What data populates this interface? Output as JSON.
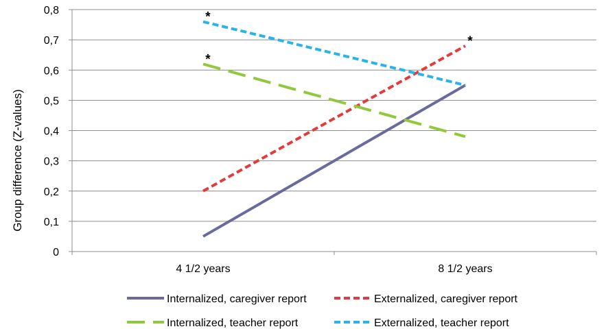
{
  "chart_data": {
    "type": "line",
    "title": "",
    "xlabel": "",
    "ylabel": "Group difference (Z-values)",
    "categories": [
      "4 1/2 years",
      "8 1/2 years"
    ],
    "ylim": [
      0,
      0.8
    ],
    "yticks": [
      0,
      0.1,
      0.2,
      0.3,
      0.4,
      0.5,
      0.6,
      0.7,
      0.8
    ],
    "ytick_labels": [
      "0",
      "0,1",
      "0,2",
      "0,3",
      "0,4",
      "0,5",
      "0,6",
      "0,7",
      "0,8"
    ],
    "grid": true,
    "legend_position": "bottom",
    "series": [
      {
        "name": "Internalized, caregiver report",
        "values": [
          0.05,
          0.55
        ],
        "color": "#6a6a9c",
        "dash": "solid",
        "markers": [
          "",
          ""
        ]
      },
      {
        "name": "Externalized, caregiver report",
        "values": [
          0.2,
          0.68
        ],
        "color": "#e33b3b",
        "dash": "dash",
        "markers": [
          "",
          "*"
        ]
      },
      {
        "name": "Internalized, teacher report",
        "values": [
          0.62,
          0.38
        ],
        "color": "#92c83e",
        "dash": "longdash",
        "markers": [
          "*",
          ""
        ]
      },
      {
        "name": "Externalized, teacher report",
        "values": [
          0.76,
          0.55
        ],
        "color": "#28b4e8",
        "dash": "dash",
        "markers": [
          "*",
          ""
        ]
      }
    ]
  }
}
